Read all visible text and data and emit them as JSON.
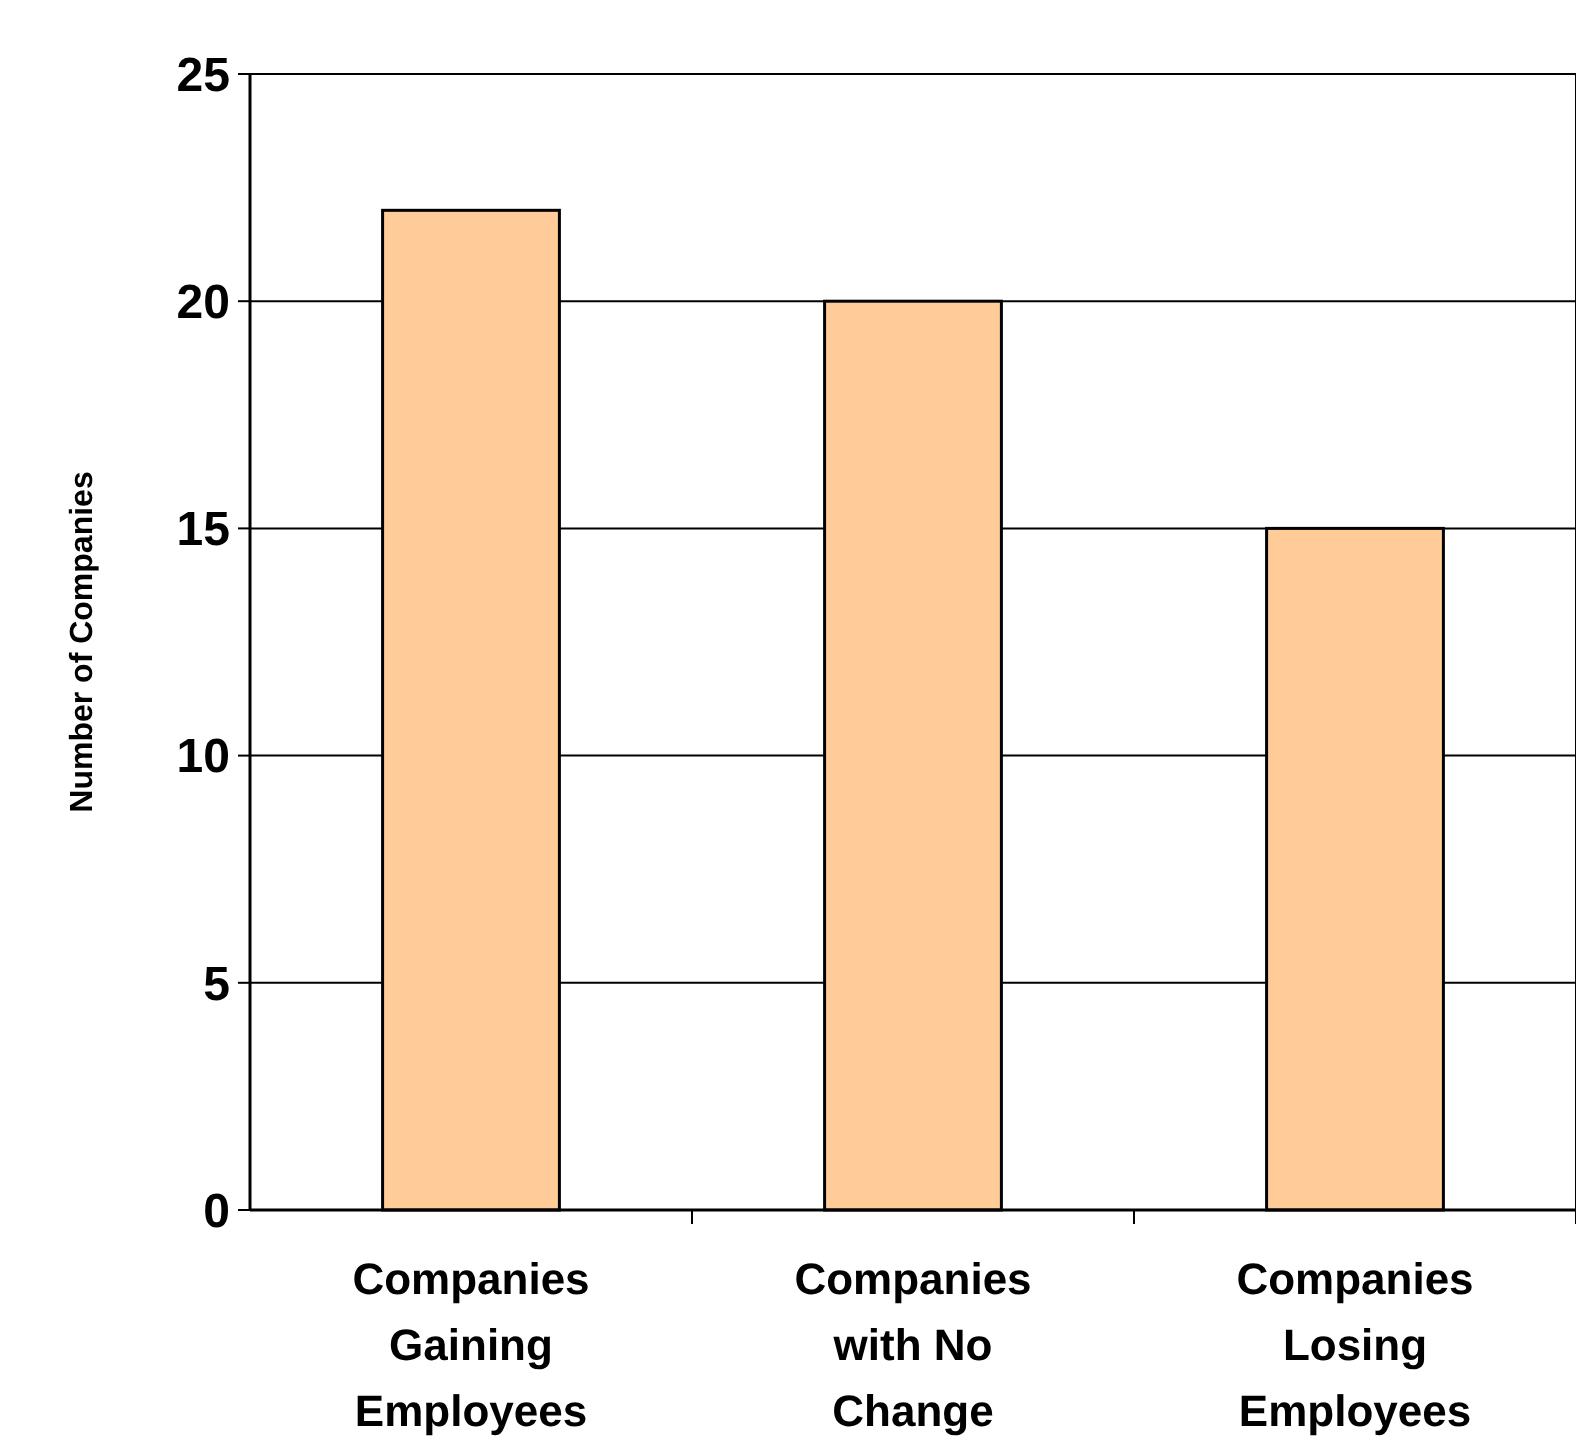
{
  "chart_data": {
    "type": "bar",
    "ylabel": "Number of Companies",
    "categories": [
      "Companies Gaining Employees",
      "Companies with No Change",
      "Companies Losing Employees"
    ],
    "values": [
      22,
      20,
      15
    ],
    "color": "#ffcc99",
    "ylim": [
      0,
      25
    ],
    "yticks": [
      0,
      5,
      10,
      15,
      20,
      25
    ],
    "grid": "y"
  }
}
